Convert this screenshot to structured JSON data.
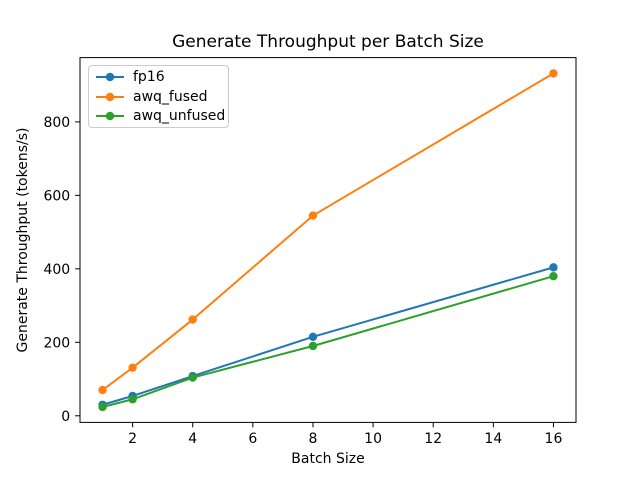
{
  "figure": {
    "background": "#ffffff"
  },
  "chart_data": {
    "type": "line",
    "title": "Generate Throughput per Batch Size",
    "xlabel": "Batch Size",
    "ylabel": "Generate Throughput (tokens/s)",
    "x": [
      1,
      2,
      4,
      8,
      16
    ],
    "series": [
      {
        "name": "fp16",
        "color": "#1f77b4",
        "values": [
          30,
          54,
          108,
          215,
          404
        ]
      },
      {
        "name": "awq_fused",
        "color": "#ff7f0e",
        "values": [
          70,
          131,
          262,
          545,
          932
        ]
      },
      {
        "name": "awq_unfused",
        "color": "#2ca02c",
        "values": [
          24,
          45,
          104,
          190,
          380
        ]
      }
    ],
    "xlim": [
      0.25,
      16.75
    ],
    "ylim": [
      -18,
      975
    ],
    "xticks": [
      2,
      4,
      6,
      8,
      10,
      12,
      14,
      16
    ],
    "yticks": [
      0,
      200,
      400,
      600,
      800
    ],
    "grid": false,
    "legend_position": "upper left",
    "marker": "circle",
    "line_width": 2,
    "marker_radius": 4.2,
    "axis_color": "#000000"
  }
}
